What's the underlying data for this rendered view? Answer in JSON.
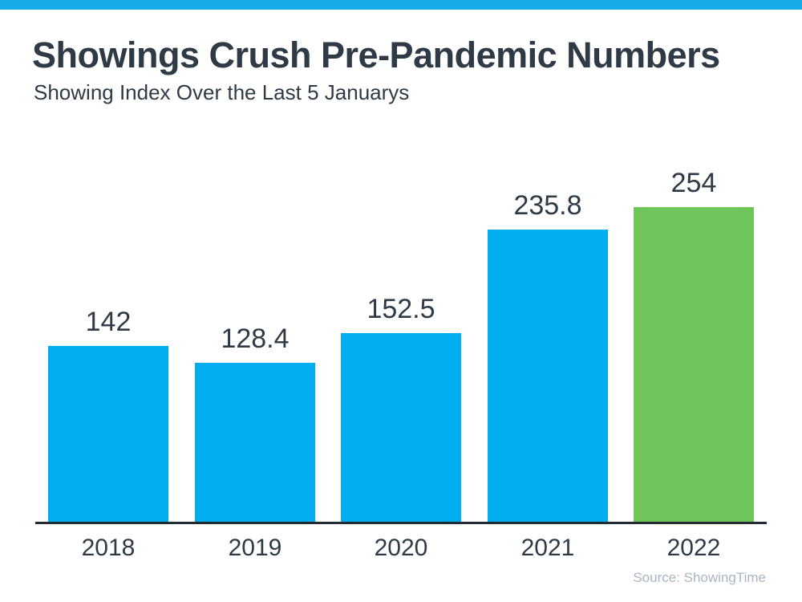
{
  "header": {
    "title": "Showings Crush Pre-Pandemic Numbers",
    "subtitle": "Showing Index Over the Last 5 Januarys"
  },
  "chart_data": {
    "type": "bar",
    "title": "Showings Crush Pre-Pandemic Numbers",
    "subtitle": "Showing Index Over the Last 5 Januarys",
    "categories": [
      "2018",
      "2019",
      "2020",
      "2021",
      "2022"
    ],
    "values": [
      142,
      128.4,
      152.5,
      235.8,
      254
    ],
    "value_labels": [
      "142",
      "128.4",
      "152.5",
      "235.8",
      "254"
    ],
    "bar_colors": [
      "#00AEEF",
      "#00AEEF",
      "#00AEEF",
      "#00AEEF",
      "#6FC45A"
    ],
    "highlight_index": 4,
    "xlabel": "",
    "ylabel": "",
    "ylim": [
      0,
      254
    ],
    "grid": false,
    "legend": false,
    "data_labels_position": "above-bars"
  },
  "footer": {
    "source_label": "Source: ShowingTime"
  },
  "colors": {
    "stripe": "#17ACE9",
    "bar_blue": "#00AEEF",
    "bar_green": "#6FC45A",
    "text_dark": "#2E3A45",
    "axis_line": "#222B33",
    "source_text": "#A9B6C1",
    "background": "#FFFFFF"
  }
}
